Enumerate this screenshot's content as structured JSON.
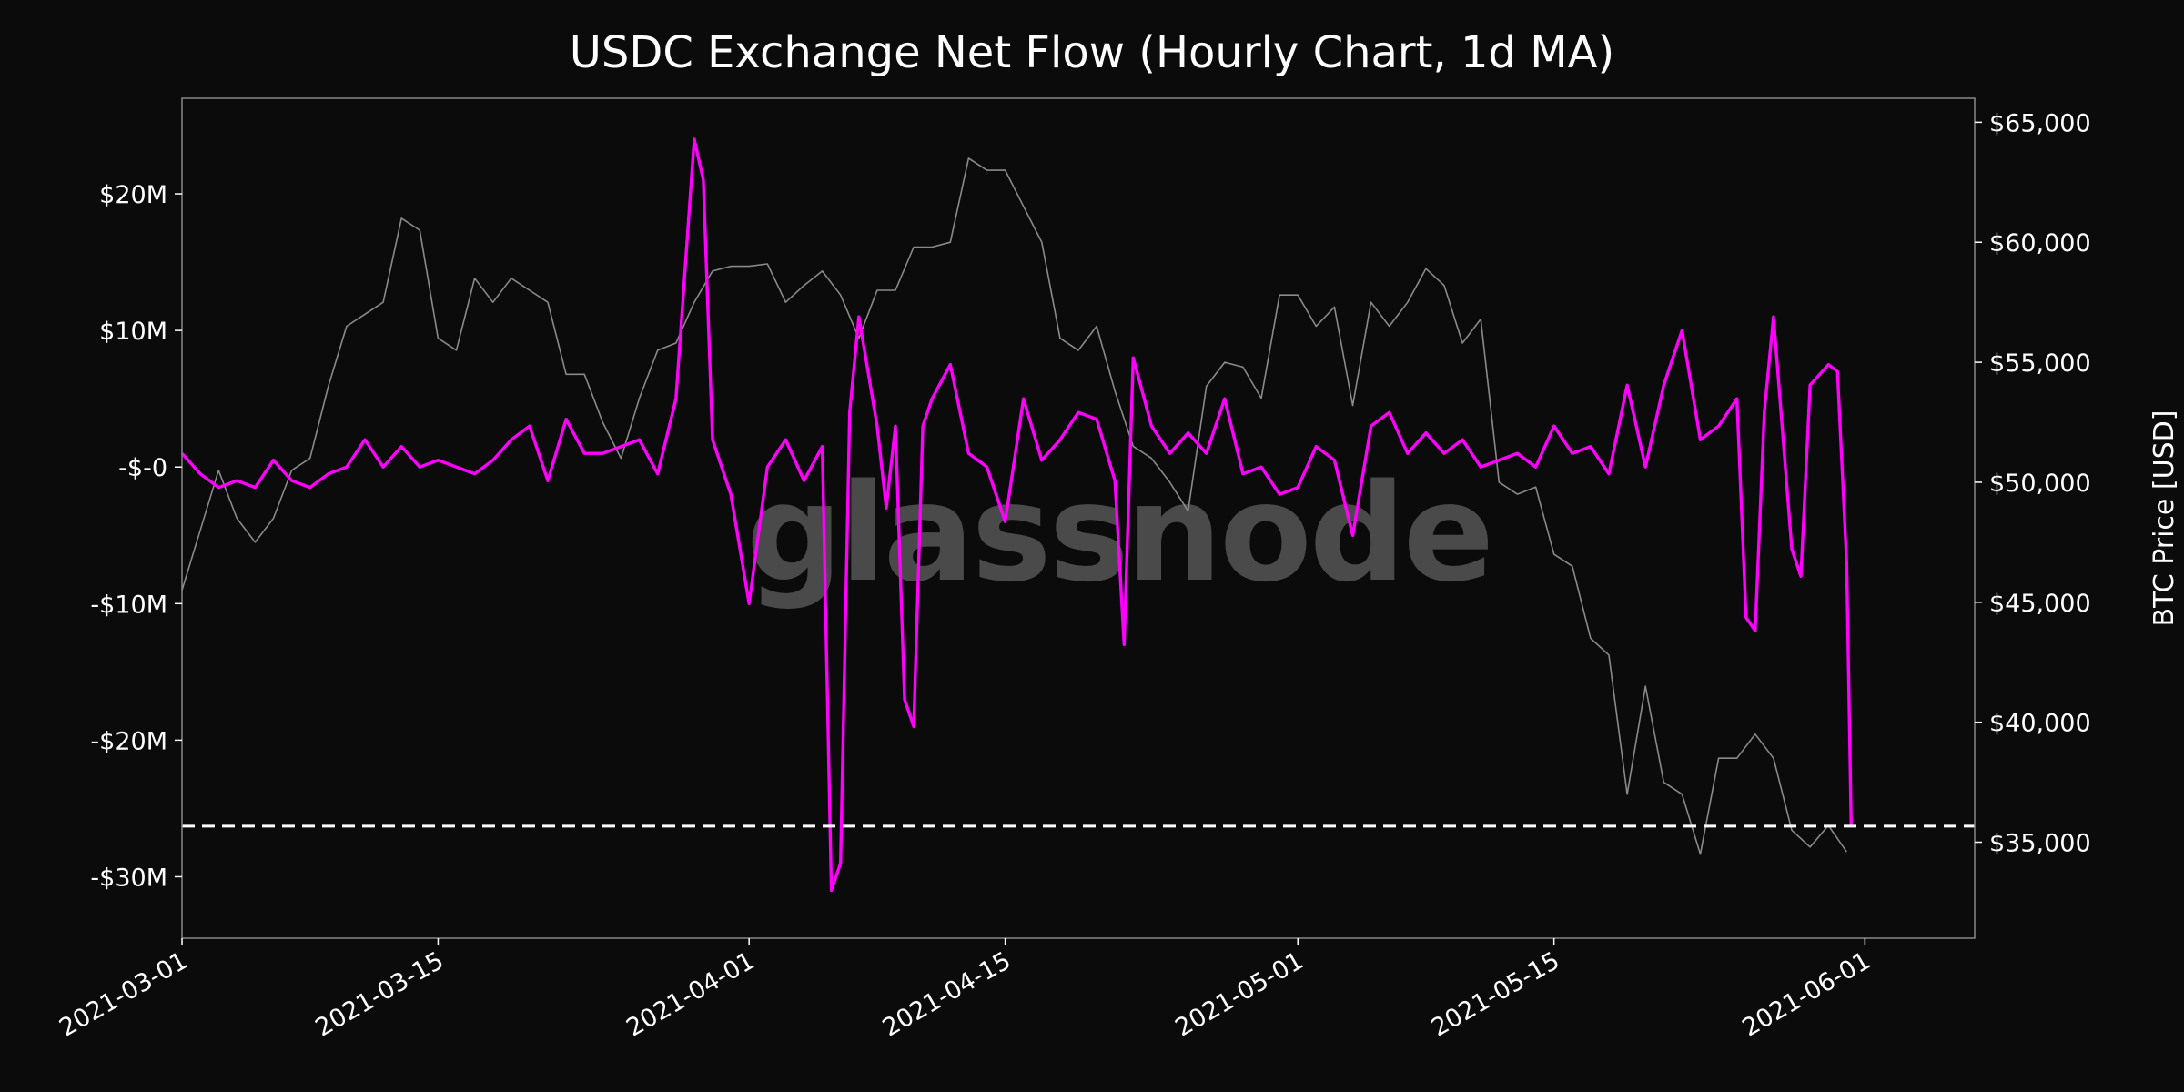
{
  "chart_data": {
    "type": "line",
    "title": "USDC Exchange Net Flow (Hourly Chart, 1d MA)",
    "watermark": "glassnode",
    "background": "#0b0b0b",
    "x_ticks": [
      "2021-03-01",
      "2021-03-15",
      "2021-04-01",
      "2021-04-15",
      "2021-05-01",
      "2021-05-15",
      "2021-06-01"
    ],
    "xlim": [
      "2021-03-01",
      "2021-06-07"
    ],
    "left_axis": {
      "ylabel": "",
      "ylim": [
        -34.5,
        27
      ],
      "unit": "M USD",
      "ticks": [
        20,
        10,
        0,
        -10,
        -20,
        -30
      ],
      "tick_labels": [
        "$20M",
        "$10M",
        "-$-0",
        "-$10M",
        "-$20M",
        "-$30M"
      ]
    },
    "right_axis": {
      "ylabel": "BTC Price [USD]",
      "ylim": [
        31000,
        66000
      ],
      "ticks": [
        65000,
        60000,
        55000,
        50000,
        45000,
        40000,
        35000
      ],
      "tick_labels": [
        "$65,000",
        "$60,000",
        "$55,000",
        "$50,000",
        "$45,000",
        "$40,000",
        "$35,000"
      ]
    },
    "reference_line": {
      "value": -26.3,
      "axis": "left",
      "style": "dashed",
      "color": "#ffffff"
    },
    "series": [
      {
        "name": "USDC Exchange Net Flow",
        "axis": "left",
        "color": "#ff00ff",
        "points": [
          [
            "2021-03-01",
            1.0
          ],
          [
            "2021-03-02",
            -0.5
          ],
          [
            "2021-03-03",
            -1.5
          ],
          [
            "2021-03-04",
            -1.0
          ],
          [
            "2021-03-05",
            -1.5
          ],
          [
            "2021-03-06",
            0.5
          ],
          [
            "2021-03-07",
            -1.0
          ],
          [
            "2021-03-08",
            -1.5
          ],
          [
            "2021-03-09",
            -0.5
          ],
          [
            "2021-03-10",
            0.0
          ],
          [
            "2021-03-11",
            2.0
          ],
          [
            "2021-03-12",
            0.0
          ],
          [
            "2021-03-13",
            1.5
          ],
          [
            "2021-03-14",
            0.0
          ],
          [
            "2021-03-15",
            0.5
          ],
          [
            "2021-03-16",
            0.0
          ],
          [
            "2021-03-17",
            -0.5
          ],
          [
            "2021-03-18",
            0.5
          ],
          [
            "2021-03-19",
            2.0
          ],
          [
            "2021-03-20",
            3.0
          ],
          [
            "2021-03-21",
            -1.0
          ],
          [
            "2021-03-22",
            3.5
          ],
          [
            "2021-03-23",
            1.0
          ],
          [
            "2021-03-24",
            1.0
          ],
          [
            "2021-03-25",
            1.5
          ],
          [
            "2021-03-26",
            2.0
          ],
          [
            "2021-03-27",
            -0.5
          ],
          [
            "2021-03-28",
            5.0
          ],
          [
            "2021-03-29",
            24.0
          ],
          [
            "2021-03-29T12",
            21.0
          ],
          [
            "2021-03-30",
            2.0
          ],
          [
            "2021-03-31",
            -2.0
          ],
          [
            "2021-04-01",
            -10.0
          ],
          [
            "2021-04-02",
            0.0
          ],
          [
            "2021-04-03",
            2.0
          ],
          [
            "2021-04-04",
            -1.0
          ],
          [
            "2021-04-05",
            1.5
          ],
          [
            "2021-04-05T12",
            -31.0
          ],
          [
            "2021-04-06",
            -29.0
          ],
          [
            "2021-04-06T12",
            4.0
          ],
          [
            "2021-04-07",
            11.0
          ],
          [
            "2021-04-08",
            3.0
          ],
          [
            "2021-04-08T12",
            -3.0
          ],
          [
            "2021-04-09",
            3.0
          ],
          [
            "2021-04-09T12",
            -17.0
          ],
          [
            "2021-04-10",
            -19.0
          ],
          [
            "2021-04-10T12",
            3.0
          ],
          [
            "2021-04-11",
            5.0
          ],
          [
            "2021-04-12",
            7.5
          ],
          [
            "2021-04-13",
            1.0
          ],
          [
            "2021-04-14",
            0.0
          ],
          [
            "2021-04-15",
            -4.0
          ],
          [
            "2021-04-16",
            5.0
          ],
          [
            "2021-04-17",
            0.5
          ],
          [
            "2021-04-18",
            2.0
          ],
          [
            "2021-04-19",
            4.0
          ],
          [
            "2021-04-20",
            3.5
          ],
          [
            "2021-04-21",
            -1.0
          ],
          [
            "2021-04-21T12",
            -13.0
          ],
          [
            "2021-04-22",
            8.0
          ],
          [
            "2021-04-23",
            3.0
          ],
          [
            "2021-04-24",
            1.0
          ],
          [
            "2021-04-25",
            2.5
          ],
          [
            "2021-04-26",
            1.0
          ],
          [
            "2021-04-27",
            5.0
          ],
          [
            "2021-04-28",
            -0.5
          ],
          [
            "2021-04-29",
            0.0
          ],
          [
            "2021-04-30",
            -2.0
          ],
          [
            "2021-05-01",
            -1.5
          ],
          [
            "2021-05-02",
            1.5
          ],
          [
            "2021-05-03",
            0.5
          ],
          [
            "2021-05-04",
            -5.0
          ],
          [
            "2021-05-05",
            3.0
          ],
          [
            "2021-05-06",
            4.0
          ],
          [
            "2021-05-07",
            1.0
          ],
          [
            "2021-05-08",
            2.5
          ],
          [
            "2021-05-09",
            1.0
          ],
          [
            "2021-05-10",
            2.0
          ],
          [
            "2021-05-11",
            0.0
          ],
          [
            "2021-05-12",
            0.5
          ],
          [
            "2021-05-13",
            1.0
          ],
          [
            "2021-05-14",
            0.0
          ],
          [
            "2021-05-15",
            3.0
          ],
          [
            "2021-05-16",
            1.0
          ],
          [
            "2021-05-17",
            1.5
          ],
          [
            "2021-05-18",
            -0.5
          ],
          [
            "2021-05-19",
            6.0
          ],
          [
            "2021-05-20",
            0.0
          ],
          [
            "2021-05-21",
            6.0
          ],
          [
            "2021-05-22",
            10.0
          ],
          [
            "2021-05-23",
            2.0
          ],
          [
            "2021-05-24",
            3.0
          ],
          [
            "2021-05-25",
            5.0
          ],
          [
            "2021-05-25T12",
            -11.0
          ],
          [
            "2021-05-26",
            -12.0
          ],
          [
            "2021-05-26T12",
            4.0
          ],
          [
            "2021-05-27",
            11.0
          ],
          [
            "2021-05-28",
            -6.0
          ],
          [
            "2021-05-28T12",
            -8.0
          ],
          [
            "2021-05-29",
            6.0
          ],
          [
            "2021-05-30",
            7.5
          ],
          [
            "2021-05-30T12",
            7.0
          ],
          [
            "2021-05-31",
            -7.0
          ],
          [
            "2021-05-31T06",
            -26.3
          ]
        ]
      },
      {
        "name": "BTC Price",
        "axis": "right",
        "color": "#8a8a8a",
        "points": [
          [
            "2021-03-01",
            45500
          ],
          [
            "2021-03-02",
            48000
          ],
          [
            "2021-03-03",
            50500
          ],
          [
            "2021-03-04",
            48500
          ],
          [
            "2021-03-05",
            47500
          ],
          [
            "2021-03-06",
            48500
          ],
          [
            "2021-03-07",
            50500
          ],
          [
            "2021-03-08",
            51000
          ],
          [
            "2021-03-09",
            54000
          ],
          [
            "2021-03-10",
            56500
          ],
          [
            "2021-03-11",
            57000
          ],
          [
            "2021-03-12",
            57500
          ],
          [
            "2021-03-13",
            61000
          ],
          [
            "2021-03-14",
            60500
          ],
          [
            "2021-03-15",
            56000
          ],
          [
            "2021-03-16",
            55500
          ],
          [
            "2021-03-17",
            58500
          ],
          [
            "2021-03-18",
            57500
          ],
          [
            "2021-03-19",
            58500
          ],
          [
            "2021-03-20",
            58000
          ],
          [
            "2021-03-21",
            57500
          ],
          [
            "2021-03-22",
            54500
          ],
          [
            "2021-03-23",
            54500
          ],
          [
            "2021-03-24",
            52500
          ],
          [
            "2021-03-25",
            51000
          ],
          [
            "2021-03-26",
            53500
          ],
          [
            "2021-03-27",
            55500
          ],
          [
            "2021-03-28",
            55800
          ],
          [
            "2021-03-29",
            57500
          ],
          [
            "2021-03-30",
            58800
          ],
          [
            "2021-03-31",
            59000
          ],
          [
            "2021-04-01",
            59000
          ],
          [
            "2021-04-02",
            59100
          ],
          [
            "2021-04-03",
            57500
          ],
          [
            "2021-04-04",
            58200
          ],
          [
            "2021-04-05",
            58800
          ],
          [
            "2021-04-06",
            57800
          ],
          [
            "2021-04-07",
            56000
          ],
          [
            "2021-04-08",
            58000
          ],
          [
            "2021-04-09",
            58000
          ],
          [
            "2021-04-10",
            59800
          ],
          [
            "2021-04-11",
            59800
          ],
          [
            "2021-04-12",
            60000
          ],
          [
            "2021-04-13",
            63500
          ],
          [
            "2021-04-14",
            63000
          ],
          [
            "2021-04-15",
            63000
          ],
          [
            "2021-04-16",
            61500
          ],
          [
            "2021-04-17",
            60000
          ],
          [
            "2021-04-18",
            56000
          ],
          [
            "2021-04-19",
            55500
          ],
          [
            "2021-04-20",
            56500
          ],
          [
            "2021-04-21",
            53800
          ],
          [
            "2021-04-22",
            51500
          ],
          [
            "2021-04-23",
            51000
          ],
          [
            "2021-04-24",
            50000
          ],
          [
            "2021-04-25",
            48800
          ],
          [
            "2021-04-26",
            54000
          ],
          [
            "2021-04-27",
            55000
          ],
          [
            "2021-04-28",
            54800
          ],
          [
            "2021-04-29",
            53500
          ],
          [
            "2021-04-30",
            57800
          ],
          [
            "2021-05-01",
            57800
          ],
          [
            "2021-05-02",
            56500
          ],
          [
            "2021-05-03",
            57300
          ],
          [
            "2021-05-04",
            53200
          ],
          [
            "2021-05-05",
            57500
          ],
          [
            "2021-05-06",
            56500
          ],
          [
            "2021-05-07",
            57500
          ],
          [
            "2021-05-08",
            58900
          ],
          [
            "2021-05-09",
            58200
          ],
          [
            "2021-05-10",
            55800
          ],
          [
            "2021-05-11",
            56800
          ],
          [
            "2021-05-12",
            50000
          ],
          [
            "2021-05-13",
            49500
          ],
          [
            "2021-05-14",
            49800
          ],
          [
            "2021-05-15",
            47000
          ],
          [
            "2021-05-16",
            46500
          ],
          [
            "2021-05-17",
            43500
          ],
          [
            "2021-05-18",
            42800
          ],
          [
            "2021-05-19",
            37000
          ],
          [
            "2021-05-20",
            41500
          ],
          [
            "2021-05-21",
            37500
          ],
          [
            "2021-05-22",
            37000
          ],
          [
            "2021-05-23",
            34500
          ],
          [
            "2021-05-24",
            38500
          ],
          [
            "2021-05-25",
            38500
          ],
          [
            "2021-05-26",
            39500
          ],
          [
            "2021-05-27",
            38500
          ],
          [
            "2021-05-28",
            35500
          ],
          [
            "2021-05-29",
            34800
          ],
          [
            "2021-05-30",
            35700
          ],
          [
            "2021-05-31",
            34600
          ]
        ]
      }
    ]
  }
}
